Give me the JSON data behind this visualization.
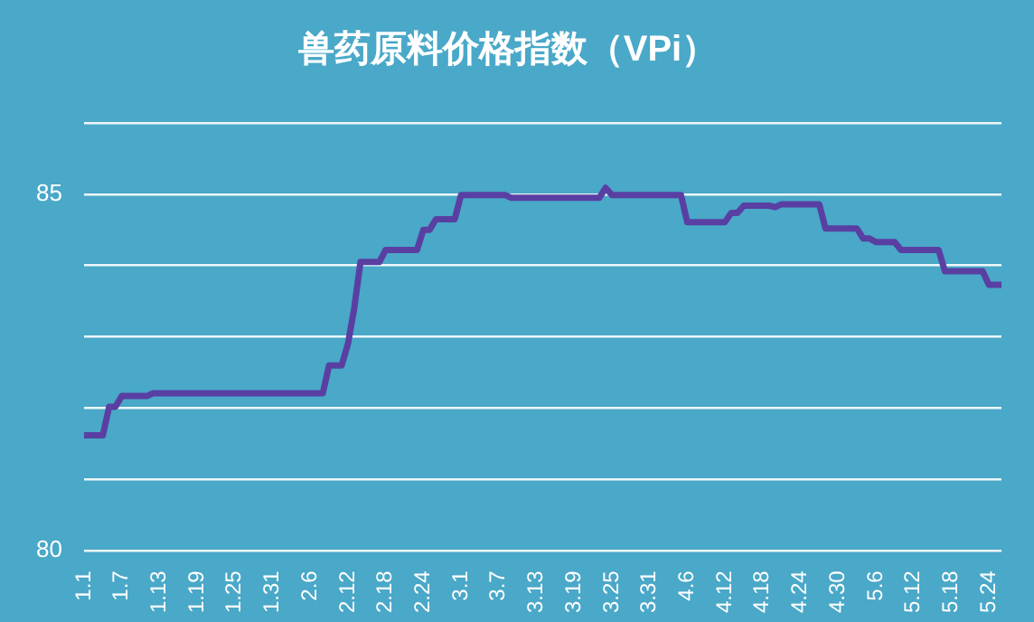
{
  "chart_data": {
    "type": "line",
    "title": "兽药原料价格指数（VPi）",
    "categories": [
      "1.1",
      null,
      null,
      null,
      null,
      null,
      "1.7",
      null,
      null,
      null,
      null,
      null,
      "1.13",
      null,
      null,
      null,
      null,
      null,
      "1.19",
      null,
      null,
      null,
      null,
      null,
      "1.25",
      null,
      null,
      null,
      null,
      null,
      "1.31",
      null,
      null,
      null,
      null,
      null,
      "2.6",
      null,
      null,
      null,
      null,
      null,
      "2.12",
      null,
      null,
      null,
      null,
      null,
      "2.18",
      null,
      null,
      null,
      null,
      null,
      "2.24",
      null,
      null,
      null,
      null,
      null,
      "3.1",
      null,
      null,
      null,
      null,
      null,
      "3.7",
      null,
      null,
      null,
      null,
      null,
      "3.13",
      null,
      null,
      null,
      null,
      null,
      "3.19",
      null,
      null,
      null,
      null,
      null,
      "3.25",
      null,
      null,
      null,
      null,
      null,
      "3.31",
      null,
      null,
      null,
      null,
      null,
      "4.6",
      null,
      null,
      null,
      null,
      null,
      "4.12",
      null,
      null,
      null,
      null,
      null,
      "4.18",
      null,
      null,
      null,
      null,
      null,
      "4.24",
      null,
      null,
      null,
      null,
      null,
      "4.30",
      null,
      null,
      null,
      null,
      null,
      "5.6",
      null,
      null,
      null,
      null,
      null,
      "5.12",
      null,
      null,
      null,
      null,
      null,
      "5.18",
      null,
      null,
      null,
      null,
      null,
      "5.24",
      null,
      null
    ],
    "series": [
      {
        "color": "#5a3fa3",
        "values": [
          81.62,
          81.62,
          81.62,
          81.62,
          82.02,
          82.02,
          82.17,
          82.17,
          82.17,
          82.17,
          82.17,
          82.21,
          82.21,
          82.21,
          82.21,
          82.21,
          82.21,
          82.21,
          82.21,
          82.21,
          82.21,
          82.21,
          82.21,
          82.21,
          82.21,
          82.21,
          82.21,
          82.21,
          82.21,
          82.21,
          82.21,
          82.21,
          82.21,
          82.21,
          82.21,
          82.21,
          82.21,
          82.21,
          82.21,
          82.6,
          82.6,
          82.6,
          82.9,
          83.4,
          84.05,
          84.05,
          84.05,
          84.05,
          84.22,
          84.22,
          84.22,
          84.22,
          84.22,
          84.22,
          84.5,
          84.5,
          84.65,
          84.65,
          84.65,
          84.65,
          84.99,
          84.99,
          84.99,
          84.99,
          84.99,
          84.99,
          84.99,
          84.99,
          84.95,
          84.95,
          84.95,
          84.95,
          84.95,
          84.95,
          84.95,
          84.95,
          84.95,
          84.95,
          84.95,
          84.95,
          84.95,
          84.95,
          84.95,
          85.09,
          84.99,
          84.99,
          84.99,
          84.99,
          84.99,
          84.99,
          84.99,
          84.99,
          84.99,
          84.99,
          84.99,
          84.99,
          84.61,
          84.61,
          84.61,
          84.61,
          84.61,
          84.61,
          84.61,
          84.74,
          84.74,
          84.84,
          84.84,
          84.84,
          84.84,
          84.84,
          84.82,
          84.86,
          84.86,
          84.86,
          84.86,
          84.86,
          84.86,
          84.86,
          84.52,
          84.52,
          84.52,
          84.52,
          84.52,
          84.52,
          84.38,
          84.38,
          84.33,
          84.33,
          84.33,
          84.33,
          84.22,
          84.22,
          84.22,
          84.22,
          84.22,
          84.22,
          84.22,
          83.92,
          83.92,
          83.92,
          83.92,
          83.92,
          83.92,
          83.92,
          83.73,
          83.73,
          83.73
        ]
      }
    ],
    "ylim": [
      80,
      86
    ],
    "yticks": [
      80,
      {
        "value": 81,
        "label": null
      },
      {
        "value": 82,
        "label": null
      },
      {
        "value": 83,
        "label": null
      },
      {
        "value": 84,
        "label": null
      },
      85,
      {
        "value": 86,
        "label": null
      }
    ],
    "grid": "y",
    "marker": "none",
    "line_style": "solid"
  }
}
